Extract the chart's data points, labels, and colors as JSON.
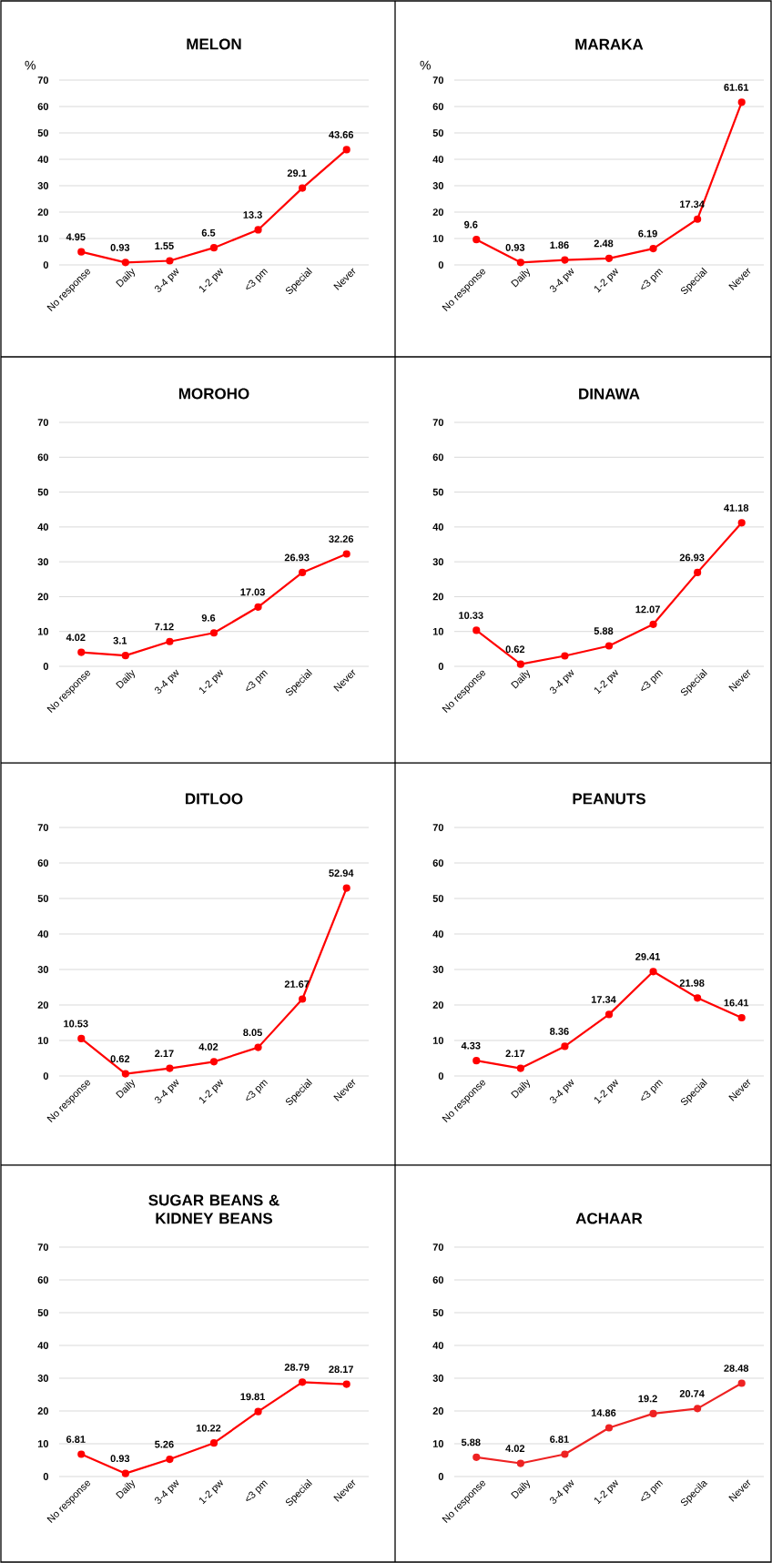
{
  "chart_data": [
    {
      "type": "line",
      "title": "MELON",
      "ylabel": "%",
      "categories": [
        "No response",
        "Daily",
        "3-4 pw",
        "1-2 pw",
        "<3 pm",
        "Special",
        "Never"
      ],
      "values": [
        4.95,
        0.93,
        1.55,
        6.5,
        13.3,
        29.1,
        43.66
      ],
      "value_labels": [
        "4.95",
        "0.93",
        "1.55",
        "6.5",
        "13.3",
        "29.1",
        "43.66"
      ],
      "color": "#ff0000",
      "ylim": [
        0,
        70
      ],
      "yticks": [
        0,
        10,
        20,
        30,
        40,
        50,
        60,
        70
      ],
      "grid": "y",
      "marker": "circle"
    },
    {
      "type": "line",
      "title": "MARAKA",
      "ylabel": "%",
      "categories": [
        "No response",
        "Daily",
        "3-4 pw",
        "1-2 pw",
        "<3 pm",
        "Special",
        "Never"
      ],
      "values": [
        9.6,
        0.93,
        1.86,
        2.48,
        6.19,
        17.34,
        61.61
      ],
      "value_labels": [
        "9.6",
        "0.93",
        "1.86",
        "2.48",
        "6.19",
        "17.34",
        "61.61"
      ],
      "color": "#ff0000",
      "ylim": [
        0,
        70
      ],
      "yticks": [
        0,
        10,
        20,
        30,
        40,
        50,
        60,
        70
      ],
      "grid": "y",
      "marker": "circle"
    },
    {
      "type": "line",
      "title": "MOROHO",
      "categories": [
        "No response",
        "Daily",
        "3-4 pw",
        "1-2 pw",
        "<3 pm",
        "Special",
        "Never"
      ],
      "values": [
        4.02,
        3.1,
        7.12,
        9.6,
        17.03,
        26.93,
        32.26
      ],
      "value_labels": [
        "4.02",
        "3.1",
        "7.12",
        "9.6",
        "17.03",
        "26.93",
        "32.26"
      ],
      "color": "#ff0000",
      "ylim": [
        0,
        70
      ],
      "yticks": [
        0,
        10,
        20,
        30,
        40,
        50,
        60,
        70
      ],
      "grid": "y",
      "marker": "circle"
    },
    {
      "type": "line",
      "title": "DINAWA",
      "categories": [
        "No response",
        "Daily",
        "3-4 pw",
        "1-2 pw",
        "<3 pm",
        "Special",
        "Never"
      ],
      "values": [
        10.33,
        0.62,
        3.0,
        5.88,
        12.07,
        26.93,
        41.18
      ],
      "value_labels": [
        "10.33",
        "0.62",
        null,
        "5.88",
        "12.07",
        "26.93",
        "41.18"
      ],
      "color": "#ff0000",
      "ylim": [
        0,
        70
      ],
      "yticks": [
        0,
        10,
        20,
        30,
        40,
        50,
        60,
        70
      ],
      "grid": "y",
      "marker": "circle"
    },
    {
      "type": "line",
      "title": "DITLOO",
      "categories": [
        "No response",
        "Daily",
        "3-4 pw",
        "1-2 pw",
        "<3 pm",
        "Special",
        "Never"
      ],
      "values": [
        10.53,
        0.62,
        2.17,
        4.02,
        8.05,
        21.67,
        52.94
      ],
      "value_labels": [
        "10.53",
        "0.62",
        "2.17",
        "4.02",
        "8.05",
        "21.67",
        "52.94"
      ],
      "color": "#ff0000",
      "ylim": [
        0,
        70
      ],
      "yticks": [
        0,
        10,
        20,
        30,
        40,
        50,
        60,
        70
      ],
      "grid": "y",
      "marker": "circle"
    },
    {
      "type": "line",
      "title": "PEANUTS",
      "categories": [
        "No response",
        "Daily",
        "3-4 pw",
        "1-2 pw",
        "<3 pm",
        "Special",
        "Never"
      ],
      "values": [
        4.33,
        2.17,
        8.36,
        17.34,
        29.41,
        21.98,
        16.41
      ],
      "value_labels": [
        "4.33",
        "2.17",
        "8.36",
        "17.34",
        "29.41",
        "21.98",
        "16.41"
      ],
      "color": "#ff0000",
      "ylim": [
        0,
        70
      ],
      "yticks": [
        0,
        10,
        20,
        30,
        40,
        50,
        60,
        70
      ],
      "grid": "y",
      "marker": "circle"
    },
    {
      "type": "line",
      "title": "SUGAR BEANS & KIDNEY BEANS",
      "categories": [
        "No response",
        "Daily",
        "3-4 pw",
        "1-2 pw",
        "<3 pm",
        "Special",
        "Never"
      ],
      "values": [
        6.81,
        0.93,
        5.26,
        10.22,
        19.81,
        28.79,
        28.17
      ],
      "value_labels": [
        "6.81",
        "0.93",
        "5.26",
        "10.22",
        "19.81",
        "28.79",
        "28.17"
      ],
      "color": "#ff0000",
      "ylim": [
        0,
        70
      ],
      "yticks": [
        0,
        10,
        20,
        30,
        40,
        50,
        60,
        70
      ],
      "grid": "y",
      "marker": "circle"
    },
    {
      "type": "line",
      "title": "ACHAAR",
      "categories": [
        "No response",
        "Daily",
        "3-4 pw",
        "1-2 pw",
        "<3 pm",
        "Specila",
        "Never"
      ],
      "values": [
        5.88,
        4.02,
        6.81,
        14.86,
        19.2,
        20.74,
        28.48
      ],
      "value_labels": [
        "5.88",
        "4.02",
        "6.81",
        "14.86",
        "19.2",
        "20.74",
        "28.48"
      ],
      "color": "#ee2222",
      "ylim": [
        0,
        70
      ],
      "yticks": [
        0,
        10,
        20,
        30,
        40,
        50,
        60,
        70
      ],
      "grid": "y",
      "marker": "circle"
    }
  ]
}
